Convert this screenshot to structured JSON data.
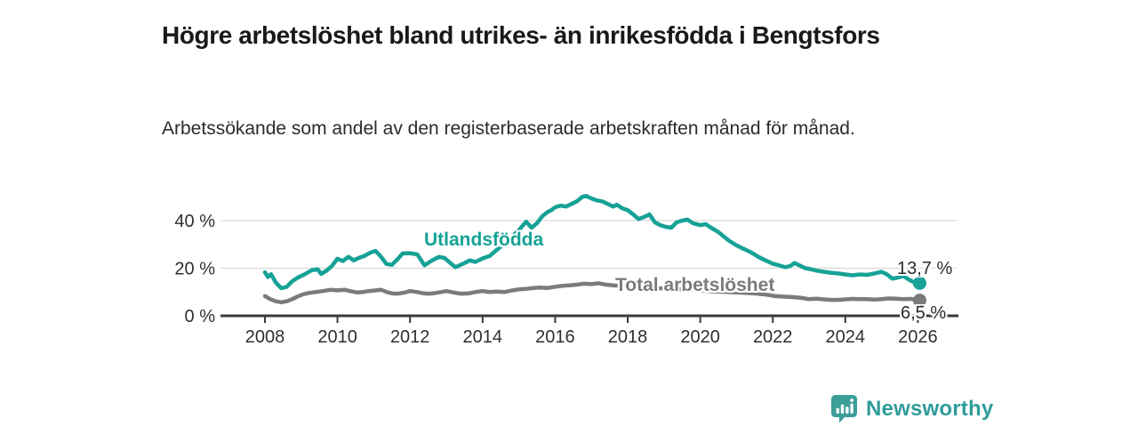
{
  "chart_data": {
    "type": "line",
    "title": "Högre arbetslöshet bland utrikes- än inrikesfödda i Bengtsfors",
    "subtitle": "Arbetssökande som andel av den registerbaserade arbetskraften månad för månad.",
    "xlabel": "",
    "ylabel": "",
    "x_axis": {
      "ticks": [
        2008,
        2010,
        2012,
        2014,
        2016,
        2018,
        2020,
        2022,
        2024,
        2026
      ],
      "min": 2006.8,
      "max": 2027.1
    },
    "y_axis": {
      "ticks": [
        {
          "v": 0,
          "label": "0 %"
        },
        {
          "v": 20,
          "label": "20 %"
        },
        {
          "v": 40,
          "label": "40 %"
        }
      ],
      "min": 0,
      "max": 55,
      "grid": true
    },
    "legend_position": "inline-labels",
    "grid_color": "#d9d9d9",
    "axis_color": "#3b3b3b",
    "tick_label_color": "#2f2f2f",
    "series": [
      {
        "name": "Utlandsfödda",
        "color": "#16a296",
        "end_label": "13,7 %",
        "end_value": 13.7,
        "points": [
          [
            2008.0,
            18.3
          ],
          [
            2008.08,
            16.3
          ],
          [
            2008.17,
            17.5
          ],
          [
            2008.3,
            14.0
          ],
          [
            2008.45,
            11.6
          ],
          [
            2008.6,
            12.2
          ],
          [
            2008.75,
            14.5
          ],
          [
            2008.9,
            16.0
          ],
          [
            2009.1,
            17.5
          ],
          [
            2009.3,
            19.2
          ],
          [
            2009.45,
            19.6
          ],
          [
            2009.55,
            17.6
          ],
          [
            2009.7,
            19.0
          ],
          [
            2009.85,
            21.0
          ],
          [
            2010.0,
            24.0
          ],
          [
            2010.15,
            23.0
          ],
          [
            2010.3,
            24.8
          ],
          [
            2010.45,
            23.3
          ],
          [
            2010.6,
            24.4
          ],
          [
            2010.75,
            25.2
          ],
          [
            2010.9,
            26.5
          ],
          [
            2011.05,
            27.3
          ],
          [
            2011.2,
            24.8
          ],
          [
            2011.35,
            21.8
          ],
          [
            2011.5,
            21.4
          ],
          [
            2011.65,
            23.7
          ],
          [
            2011.8,
            26.2
          ],
          [
            2012.0,
            26.3
          ],
          [
            2012.2,
            25.8
          ],
          [
            2012.4,
            21.2
          ],
          [
            2012.6,
            23.2
          ],
          [
            2012.8,
            24.8
          ],
          [
            2012.95,
            24.3
          ],
          [
            2013.1,
            22.3
          ],
          [
            2013.25,
            20.4
          ],
          [
            2013.45,
            21.8
          ],
          [
            2013.65,
            23.3
          ],
          [
            2013.8,
            22.6
          ],
          [
            2014.0,
            24.1
          ],
          [
            2014.2,
            25.2
          ],
          [
            2014.4,
            27.8
          ],
          [
            2014.6,
            30.3
          ],
          [
            2014.8,
            33.3
          ],
          [
            2015.0,
            35.9
          ],
          [
            2015.1,
            37.8
          ],
          [
            2015.2,
            39.6
          ],
          [
            2015.35,
            37.0
          ],
          [
            2015.5,
            38.9
          ],
          [
            2015.65,
            41.9
          ],
          [
            2015.8,
            43.7
          ],
          [
            2015.9,
            44.4
          ],
          [
            2016.0,
            45.6
          ],
          [
            2016.15,
            46.3
          ],
          [
            2016.3,
            45.9
          ],
          [
            2016.45,
            47.0
          ],
          [
            2016.6,
            48.1
          ],
          [
            2016.75,
            50.0
          ],
          [
            2016.85,
            50.4
          ],
          [
            2017.0,
            49.3
          ],
          [
            2017.15,
            48.5
          ],
          [
            2017.3,
            48.1
          ],
          [
            2017.45,
            47.0
          ],
          [
            2017.6,
            45.9
          ],
          [
            2017.7,
            46.7
          ],
          [
            2017.85,
            45.2
          ],
          [
            2018.0,
            44.4
          ],
          [
            2018.15,
            42.6
          ],
          [
            2018.3,
            40.7
          ],
          [
            2018.45,
            41.5
          ],
          [
            2018.6,
            42.6
          ],
          [
            2018.75,
            39.3
          ],
          [
            2018.9,
            38.1
          ],
          [
            2019.05,
            37.4
          ],
          [
            2019.2,
            37.0
          ],
          [
            2019.35,
            39.3
          ],
          [
            2019.5,
            40.0
          ],
          [
            2019.65,
            40.4
          ],
          [
            2019.8,
            38.9
          ],
          [
            2020.0,
            38.1
          ],
          [
            2020.15,
            38.5
          ],
          [
            2020.3,
            37.0
          ],
          [
            2020.5,
            35.2
          ],
          [
            2020.65,
            33.3
          ],
          [
            2020.8,
            31.5
          ],
          [
            2021.0,
            29.6
          ],
          [
            2021.2,
            28.1
          ],
          [
            2021.4,
            26.7
          ],
          [
            2021.6,
            24.8
          ],
          [
            2021.8,
            23.3
          ],
          [
            2022.0,
            21.9
          ],
          [
            2022.2,
            21.1
          ],
          [
            2022.35,
            20.4
          ],
          [
            2022.5,
            21.1
          ],
          [
            2022.6,
            22.2
          ],
          [
            2022.75,
            21.1
          ],
          [
            2022.9,
            20.0
          ],
          [
            2023.05,
            19.6
          ],
          [
            2023.2,
            19.0
          ],
          [
            2023.4,
            18.5
          ],
          [
            2023.6,
            18.1
          ],
          [
            2023.8,
            17.8
          ],
          [
            2024.0,
            17.4
          ],
          [
            2024.2,
            17.0
          ],
          [
            2024.4,
            17.4
          ],
          [
            2024.6,
            17.2
          ],
          [
            2024.8,
            17.8
          ],
          [
            2025.0,
            18.5
          ],
          [
            2025.15,
            17.4
          ],
          [
            2025.3,
            15.6
          ],
          [
            2025.45,
            16.1
          ],
          [
            2025.6,
            16.7
          ],
          [
            2025.75,
            15.2
          ],
          [
            2025.9,
            14.1
          ],
          [
            2026.05,
            13.7
          ]
        ]
      },
      {
        "name": "Total arbetslöshet",
        "color": "#7b7b7e",
        "end_label": "6,5 %",
        "end_value": 6.5,
        "points": [
          [
            2008.0,
            8.3
          ],
          [
            2008.15,
            7.0
          ],
          [
            2008.3,
            6.1
          ],
          [
            2008.45,
            5.7
          ],
          [
            2008.6,
            6.1
          ],
          [
            2008.75,
            7.0
          ],
          [
            2008.9,
            8.1
          ],
          [
            2009.05,
            9.0
          ],
          [
            2009.2,
            9.6
          ],
          [
            2009.4,
            10.0
          ],
          [
            2009.6,
            10.4
          ],
          [
            2009.8,
            10.9
          ],
          [
            2010.0,
            10.7
          ],
          [
            2010.2,
            10.9
          ],
          [
            2010.4,
            10.2
          ],
          [
            2010.55,
            9.8
          ],
          [
            2010.7,
            10.0
          ],
          [
            2010.85,
            10.4
          ],
          [
            2011.0,
            10.6
          ],
          [
            2011.2,
            10.9
          ],
          [
            2011.4,
            9.8
          ],
          [
            2011.55,
            9.3
          ],
          [
            2011.7,
            9.4
          ],
          [
            2011.85,
            9.8
          ],
          [
            2012.0,
            10.4
          ],
          [
            2012.2,
            10.0
          ],
          [
            2012.4,
            9.4
          ],
          [
            2012.55,
            9.3
          ],
          [
            2012.7,
            9.6
          ],
          [
            2012.85,
            10.0
          ],
          [
            2013.0,
            10.4
          ],
          [
            2013.2,
            9.8
          ],
          [
            2013.4,
            9.3
          ],
          [
            2013.6,
            9.4
          ],
          [
            2013.8,
            10.0
          ],
          [
            2014.0,
            10.4
          ],
          [
            2014.2,
            10.0
          ],
          [
            2014.4,
            10.2
          ],
          [
            2014.6,
            10.0
          ],
          [
            2014.8,
            10.6
          ],
          [
            2015.0,
            11.1
          ],
          [
            2015.2,
            11.3
          ],
          [
            2015.4,
            11.7
          ],
          [
            2015.6,
            11.9
          ],
          [
            2015.8,
            11.7
          ],
          [
            2016.0,
            12.2
          ],
          [
            2016.2,
            12.6
          ],
          [
            2016.4,
            12.8
          ],
          [
            2016.6,
            13.1
          ],
          [
            2016.8,
            13.5
          ],
          [
            2017.0,
            13.3
          ],
          [
            2017.2,
            13.7
          ],
          [
            2017.4,
            13.1
          ],
          [
            2017.6,
            12.8
          ],
          [
            2017.8,
            12.6
          ],
          [
            2018.0,
            12.4
          ],
          [
            2018.25,
            12.2
          ],
          [
            2018.5,
            12.0
          ],
          [
            2018.75,
            11.7
          ],
          [
            2019.0,
            11.5
          ],
          [
            2019.25,
            11.3
          ],
          [
            2019.5,
            11.1
          ],
          [
            2019.75,
            10.9
          ],
          [
            2020.0,
            10.7
          ],
          [
            2020.25,
            10.4
          ],
          [
            2020.5,
            10.2
          ],
          [
            2020.75,
            10.0
          ],
          [
            2021.0,
            9.8
          ],
          [
            2021.25,
            9.6
          ],
          [
            2021.5,
            9.4
          ],
          [
            2021.7,
            9.1
          ],
          [
            2021.9,
            8.7
          ],
          [
            2022.05,
            8.3
          ],
          [
            2022.2,
            8.1
          ],
          [
            2022.4,
            8.0
          ],
          [
            2022.6,
            7.8
          ],
          [
            2022.8,
            7.5
          ],
          [
            2023.0,
            7.0
          ],
          [
            2023.2,
            7.2
          ],
          [
            2023.4,
            6.9
          ],
          [
            2023.6,
            6.7
          ],
          [
            2023.8,
            6.7
          ],
          [
            2024.0,
            6.9
          ],
          [
            2024.2,
            7.1
          ],
          [
            2024.4,
            7.0
          ],
          [
            2024.6,
            7.0
          ],
          [
            2024.8,
            6.8
          ],
          [
            2025.0,
            7.0
          ],
          [
            2025.2,
            7.3
          ],
          [
            2025.4,
            7.2
          ],
          [
            2025.6,
            7.0
          ],
          [
            2025.8,
            7.1
          ],
          [
            2026.05,
            6.5
          ]
        ]
      }
    ]
  },
  "branding": {
    "name": "Newsworthy",
    "color": "#2e9c99",
    "icon": "bar-chart-speech-bubble-icon",
    "icon_color": "#3a9e99"
  }
}
